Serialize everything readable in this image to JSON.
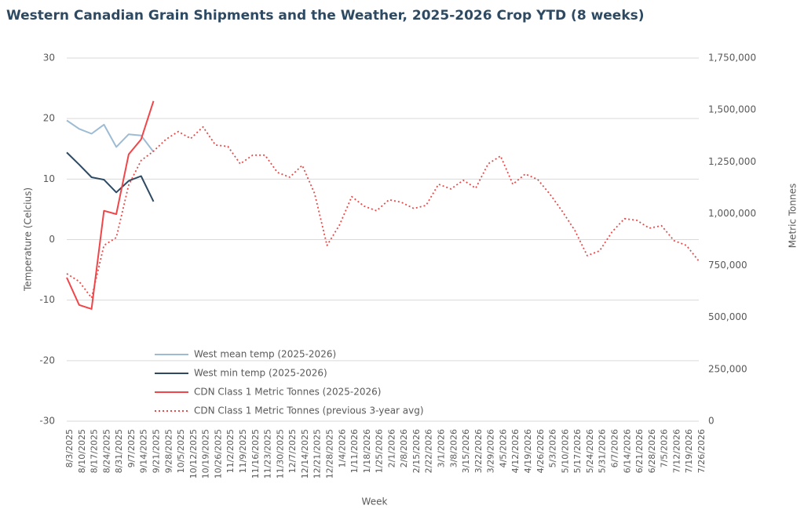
{
  "chart_data": {
    "type": "line",
    "title": "Western Canadian Grain Shipments and the Weather, 2025-2026 Crop YTD (8 weeks)",
    "x_label": "Week",
    "y_label": "Temperature (Celcius)",
    "y2_label": "Metric Tonnes",
    "categories": [
      "8/3/2025",
      "8/10/2025",
      "8/17/2025",
      "8/24/2025",
      "8/31/2025",
      "9/7/2025",
      "9/14/2025",
      "9/21/2025",
      "9/28/2025",
      "10/5/2025",
      "10/12/2025",
      "10/19/2025",
      "10/26/2025",
      "11/2/2025",
      "11/9/2025",
      "11/16/2025",
      "11/23/2025",
      "11/30/2025",
      "12/7/2025",
      "12/14/2025",
      "12/21/2025",
      "12/28/2025",
      "1/4/2026",
      "1/11/2026",
      "1/18/2026",
      "1/25/2026",
      "2/1/2026",
      "2/8/2026",
      "2/15/2026",
      "2/22/2026",
      "3/1/2026",
      "3/8/2026",
      "3/15/2026",
      "3/22/2026",
      "3/29/2026",
      "4/5/2026",
      "4/12/2026",
      "4/19/2026",
      "4/26/2026",
      "5/3/2026",
      "5/10/2026",
      "5/17/2026",
      "5/24/2026",
      "5/31/2026",
      "6/7/2026",
      "6/14/2026",
      "6/21/2026",
      "6/28/2026",
      "7/5/2026",
      "7/12/2026",
      "7/19/2026",
      "7/26/2026"
    ],
    "series": [
      {
        "name": "West mean temp (2025-2026)",
        "color": "#9dbcd4",
        "style": "solid",
        "axis": "y",
        "values": [
          19.7,
          18.3,
          17.5,
          19.0,
          15.3,
          17.4,
          17.2,
          14.5,
          null,
          null,
          null,
          null,
          null,
          null,
          null,
          null,
          null,
          null,
          null,
          null,
          null,
          null,
          null,
          null,
          null,
          null,
          null,
          null,
          null,
          null,
          null,
          null,
          null,
          null,
          null,
          null,
          null,
          null,
          null,
          null,
          null,
          null,
          null,
          null,
          null,
          null,
          null,
          null,
          null,
          null,
          null,
          null
        ]
      },
      {
        "name": "West min temp (2025-2026)",
        "color": "#2e4a62",
        "style": "solid",
        "axis": "y",
        "values": [
          14.4,
          12.4,
          10.3,
          9.9,
          7.8,
          9.7,
          10.5,
          6.3,
          null,
          null,
          null,
          null,
          null,
          null,
          null,
          null,
          null,
          null,
          null,
          null,
          null,
          null,
          null,
          null,
          null,
          null,
          null,
          null,
          null,
          null,
          null,
          null,
          null,
          null,
          null,
          null,
          null,
          null,
          null,
          null,
          null,
          null,
          null,
          null,
          null,
          null,
          null,
          null,
          null,
          null,
          null,
          null
        ]
      },
      {
        "name": "CDN Class 1 Metric Tonnes (2025-2026)",
        "color": "#f0464a",
        "style": "solid",
        "axis": "y2",
        "values": [
          692000,
          560000,
          541000,
          1014000,
          998000,
          1286000,
          1358000,
          1543000,
          null,
          null,
          null,
          null,
          null,
          null,
          null,
          null,
          null,
          null,
          null,
          null,
          null,
          null,
          null,
          null,
          null,
          null,
          null,
          null,
          null,
          null,
          null,
          null,
          null,
          null,
          null,
          null,
          null,
          null,
          null,
          null,
          null,
          null,
          null,
          null,
          null,
          null,
          null,
          null,
          null,
          null,
          null,
          null
        ]
      },
      {
        "name": "CDN Class 1 Metric Tonnes (previous 3-year avg)",
        "color": "#e84a4a",
        "style": "dotted",
        "axis": "y2",
        "values": [
          711000,
          673000,
          594000,
          847000,
          885000,
          1138000,
          1256000,
          1301000,
          1358000,
          1396000,
          1362000,
          1418000,
          1331000,
          1324000,
          1240000,
          1282000,
          1282000,
          1199000,
          1176000,
          1233000,
          1097000,
          847000,
          945000,
          1082000,
          1036000,
          1014000,
          1067000,
          1055000,
          1025000,
          1040000,
          1142000,
          1119000,
          1161000,
          1123000,
          1240000,
          1278000,
          1142000,
          1191000,
          1165000,
          1093000,
          1010000,
          919000,
          798000,
          821000,
          912000,
          976000,
          968000,
          930000,
          942000,
          870000,
          847000,
          772000
        ]
      }
    ],
    "ylim": [
      -30,
      30
    ],
    "yticks": [
      -30,
      -20,
      -10,
      0,
      10,
      20,
      30
    ],
    "y2lim": [
      0,
      1750000
    ],
    "y2ticks": [
      {
        "value": 0,
        "label": "0"
      },
      {
        "value": 250000,
        "label": "250,000"
      },
      {
        "value": 500000,
        "label": "500,000"
      },
      {
        "value": 750000,
        "label": "750,000"
      },
      {
        "value": 1000000,
        "label": "1,000,000"
      },
      {
        "value": 1250000,
        "label": "1,250,000"
      },
      {
        "value": 1500000,
        "label": "1,500,000"
      },
      {
        "value": 1750000,
        "label": "1,750,000"
      }
    ],
    "grid": true,
    "legend": "bottom-left"
  }
}
